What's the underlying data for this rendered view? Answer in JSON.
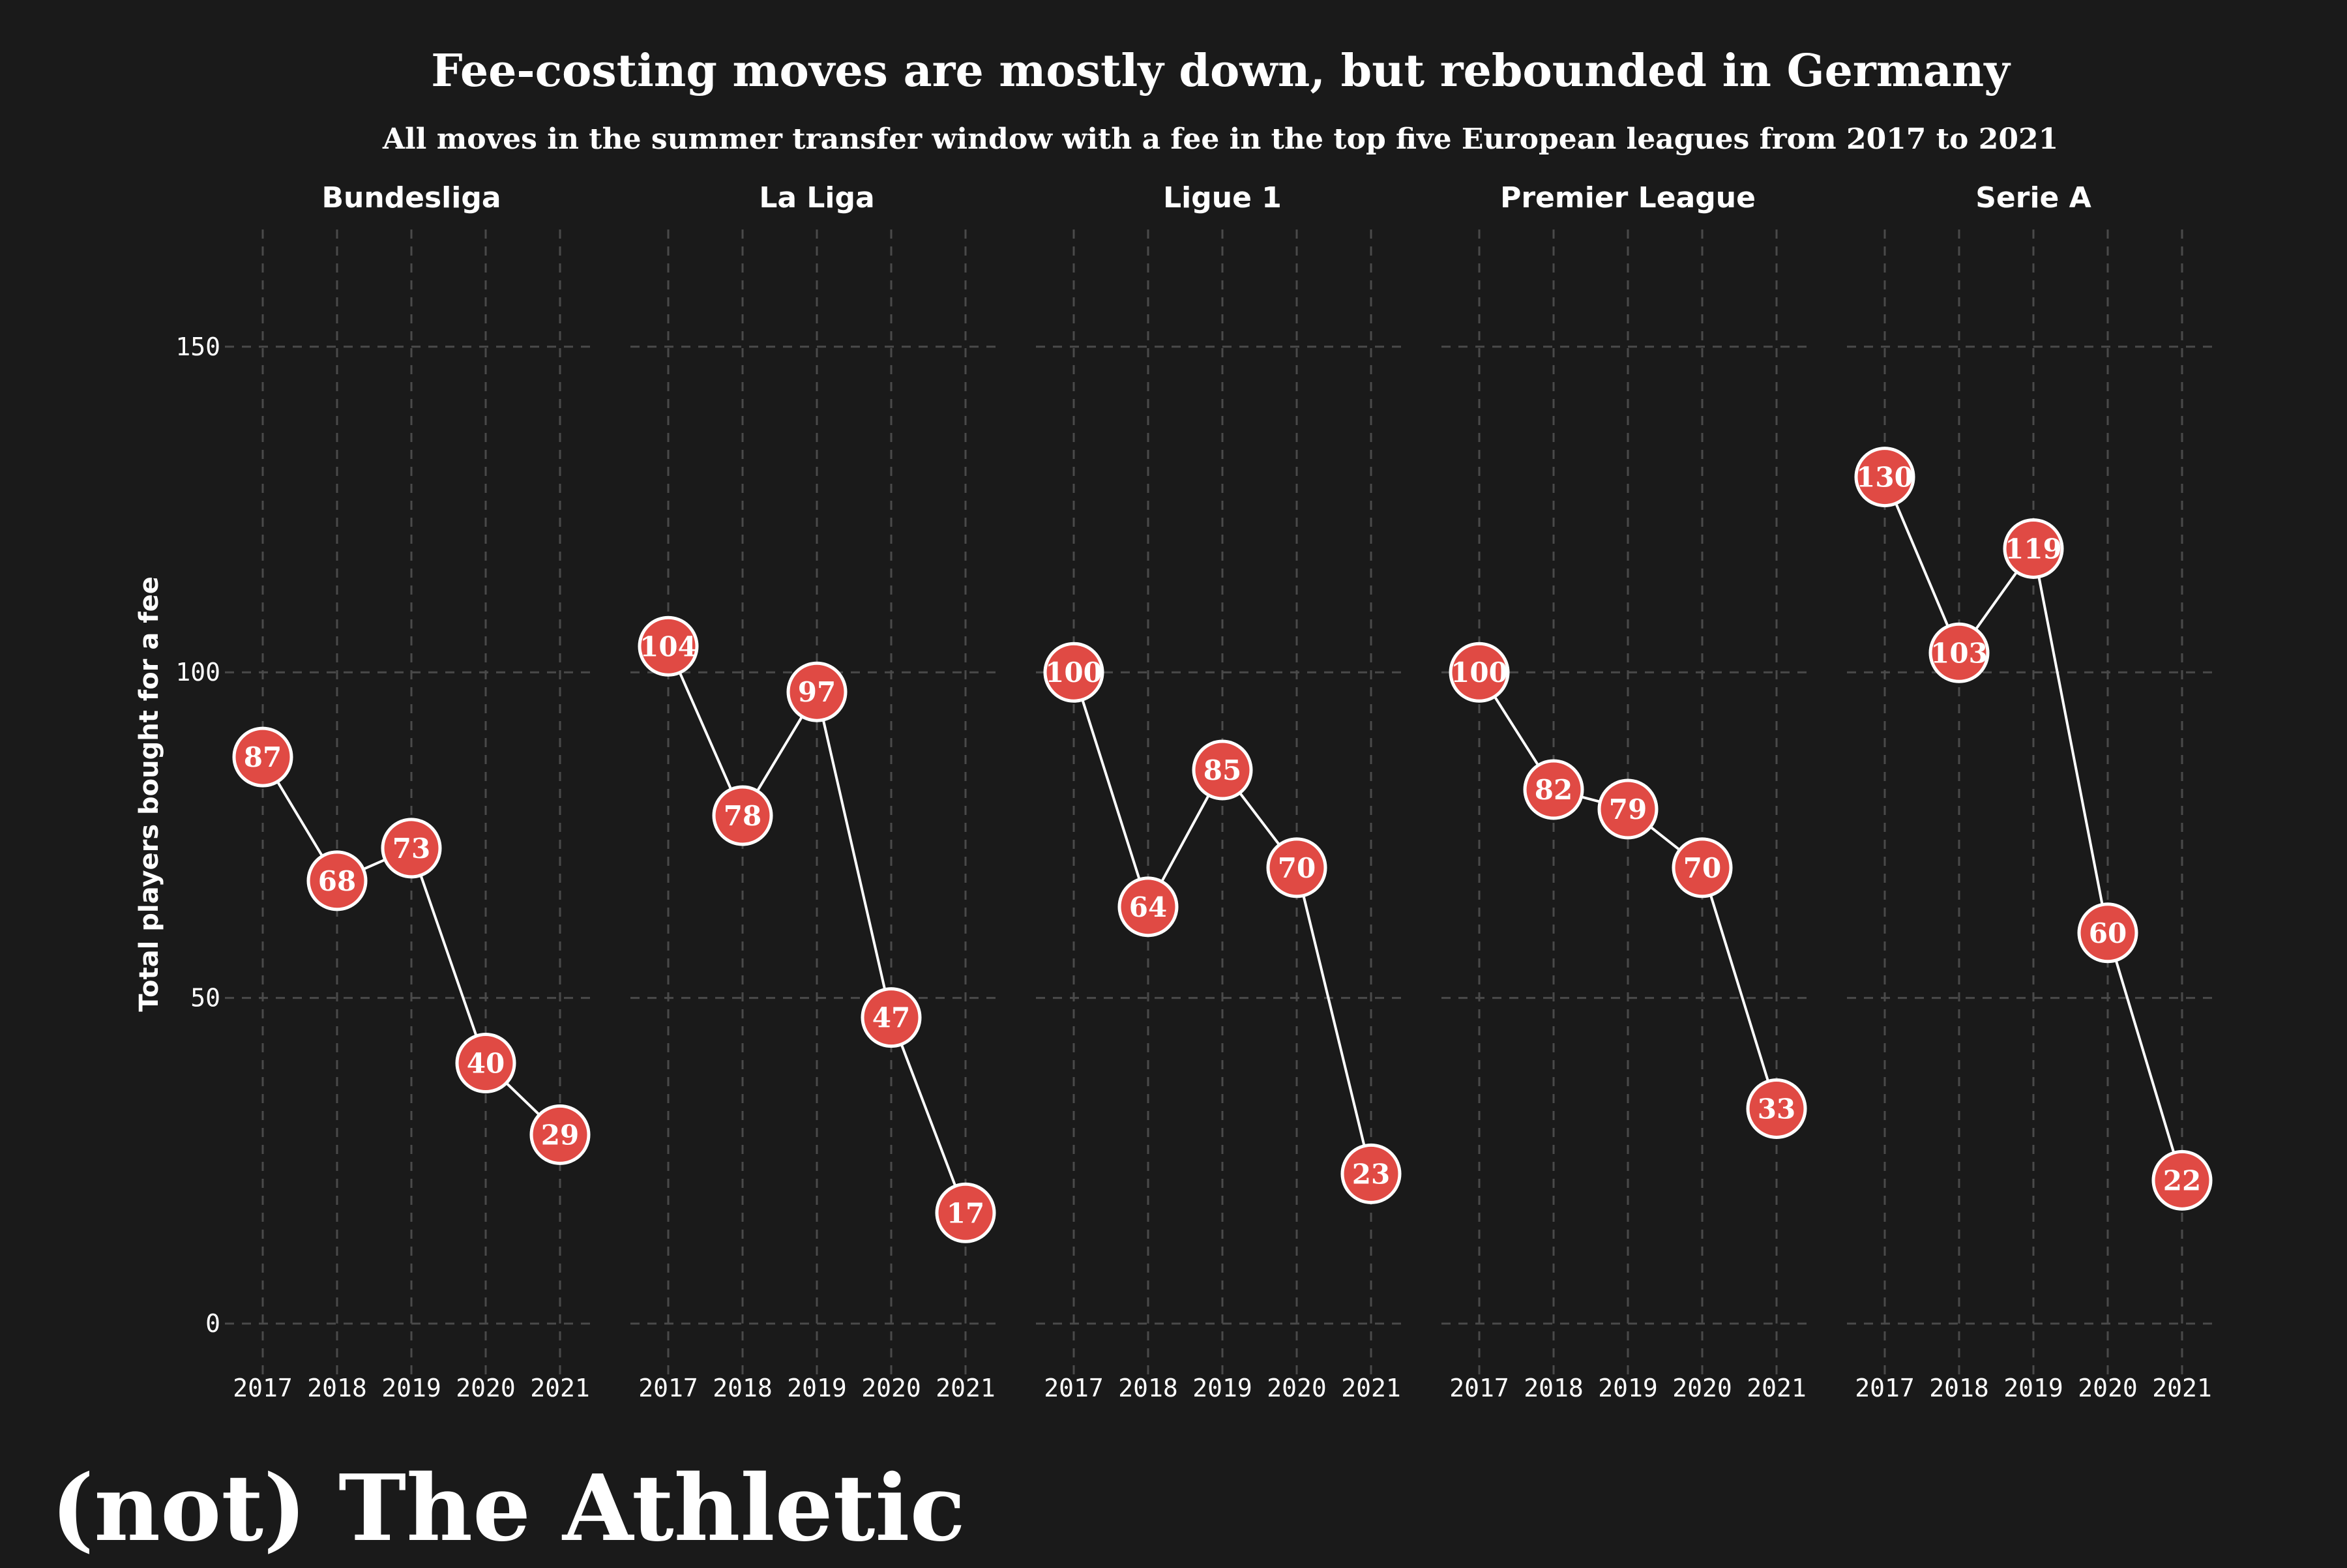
{
  "colors": {
    "background": "#1a1a1a",
    "marker": "#e04a44",
    "line": "#ffffff",
    "grid": "#4a4a4a",
    "text": "#ffffff"
  },
  "title": "Fee-costing moves are mostly down, but rebounded in Germany",
  "subtitle": "All moves in the summer transfer window with a fee in the top five European leagues from 2017 to 2021",
  "brand": "(not) The Athletic",
  "chart_data": {
    "type": "line",
    "ylabel": "Total players bought for a fee",
    "xlabel": "",
    "ylim": [
      -8,
      168
    ],
    "yticks": [
      "0",
      "50",
      "100",
      "150"
    ],
    "ytick_values": [
      0,
      50,
      100,
      150
    ],
    "x": [
      "2017",
      "2018",
      "2019",
      "2020",
      "2021"
    ],
    "grid": true,
    "facets": [
      {
        "name": "Bundesliga",
        "values": [
          87,
          68,
          73,
          40,
          29
        ]
      },
      {
        "name": "La Liga",
        "values": [
          104,
          78,
          97,
          47,
          17
        ]
      },
      {
        "name": "Ligue 1",
        "values": [
          100,
          64,
          85,
          70,
          23
        ]
      },
      {
        "name": "Premier League",
        "values": [
          100,
          82,
          79,
          70,
          33
        ]
      },
      {
        "name": "Serie A",
        "values": [
          130,
          103,
          119,
          60,
          22
        ]
      }
    ]
  }
}
